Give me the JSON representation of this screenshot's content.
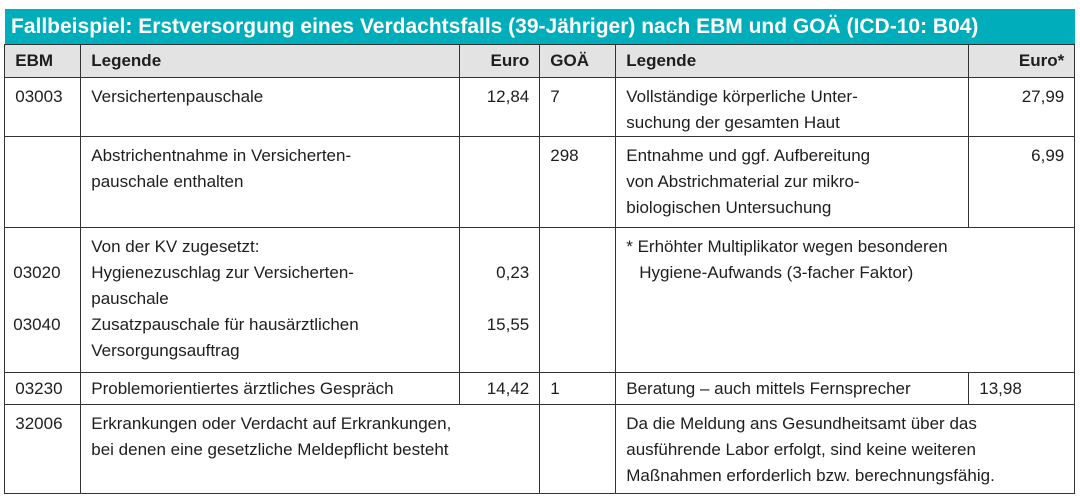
{
  "title": "Fallbeispiel: Erstversorgung eines Verdachtsfalls (39-Jähriger) nach EBM und GOÄ (ICD-10: B04)",
  "colors": {
    "title_bar": "#00aebb",
    "header_bg": "#e3e3e3"
  },
  "headers": {
    "ebm": "EBM",
    "legende_ebm": "Legende",
    "euro_ebm": "Euro",
    "goae": "GOÄ",
    "legende_goae": "Legende",
    "euro_goae": "Euro*"
  },
  "rows": [
    {
      "ebm": "03003",
      "legende": "Versichertenpauschale",
      "euro": "12,84",
      "goae": "7",
      "goae_legende": [
        "Vollständige körperliche Unter-",
        "suchung der gesamten Haut"
      ],
      "goae_euro": "27,99"
    },
    {
      "legende": [
        "Abstrichentnahme in Versicherten-",
        "pauschale enthalten"
      ],
      "goae": "298",
      "goae_legende": [
        "Entnahme und ggf. Aufbereitung",
        "von Abstrichmaterial zur mikro-",
        "biologischen Untersuchung"
      ],
      "goae_euro": "6,99"
    },
    {
      "intro": "Von der KV zugesetzt:",
      "items": [
        {
          "ebm": "03020",
          "legende": [
            "Hygienezuschlag zur Versicherten-",
            "pauschale"
          ],
          "euro": "0,23"
        },
        {
          "ebm": "03040",
          "legende": [
            "Zusatzpauschale für hausärztlichen",
            "Versorgungsauftrag"
          ],
          "euro": "15,55"
        }
      ],
      "footnote": [
        "* Erhöhter Multiplikator wegen besonderen",
        "Hygiene-Aufwands (3-facher Faktor)"
      ]
    },
    {
      "ebm": "03230",
      "legende": "Problemorientiertes ärztliches Gespräch",
      "euro": "14,42",
      "goae": "1",
      "goae_legende": "Beratung – auch mittels Fernsprecher",
      "goae_euro": "13,98"
    },
    {
      "ebm": "32006",
      "legende": [
        "Erkrankungen oder Verdacht auf Erkrankungen,",
        "bei denen eine gesetzliche Meldepflicht besteht"
      ],
      "goae_note": [
        "Da die Meldung ans Gesundheitsamt über das",
        "ausführende Labor erfolgt, sind keine weiteren",
        "Maßnahmen erforderlich bzw. berechnungsfähig."
      ]
    }
  ]
}
